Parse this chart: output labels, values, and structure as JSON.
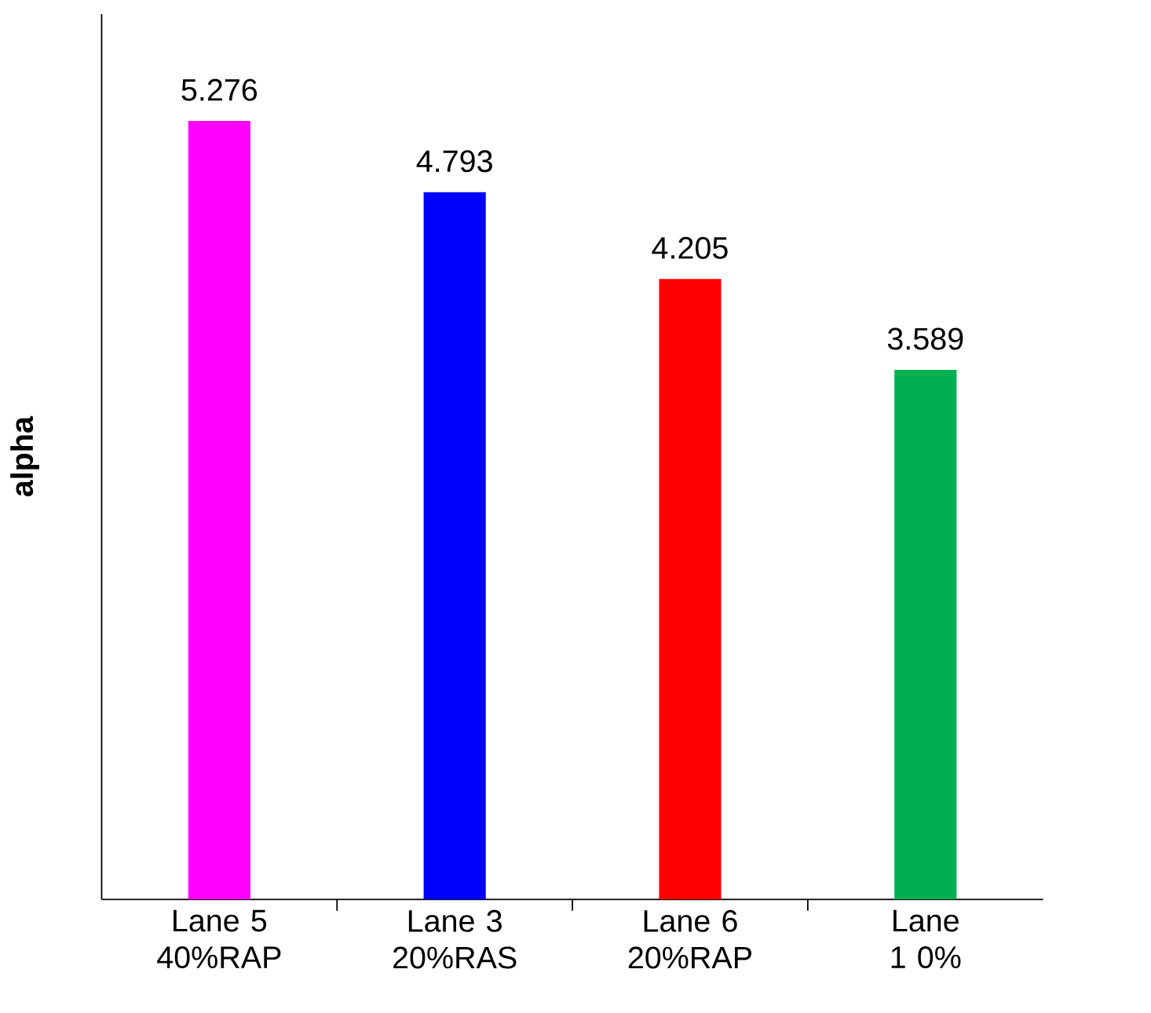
{
  "chart_data": {
    "type": "bar",
    "ylabel": "alpha",
    "categories": [
      "Lane 5 40%RAP",
      "Lane 3 20%RAS",
      "Lane 6 20%RAP",
      "Lane 1 0%"
    ],
    "values": [
      5.276,
      4.793,
      4.205,
      3.589
    ],
    "colors": [
      "#ff00ff",
      "#0000ff",
      "#ff0000",
      "#00b050"
    ],
    "ylim": [
      0,
      6
    ],
    "data_labels": true
  }
}
